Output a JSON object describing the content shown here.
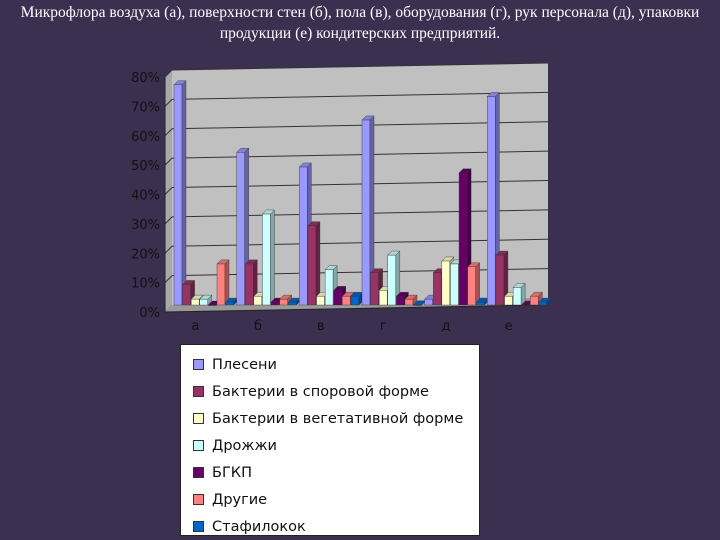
{
  "title": "Микрофлора воздуха (а), поверхности стен (б), пола (в), оборудования (г), рук персонала (д), упаковки продукции (е) кондитерских предприятий.",
  "chart_data": {
    "type": "bar",
    "title": "",
    "xlabel": "",
    "ylabel": "",
    "ylim": [
      0,
      80
    ],
    "y_unit": "%",
    "y_ticks": [
      "0%",
      "10%",
      "20%",
      "30%",
      "40%",
      "50%",
      "60%",
      "70%",
      "80%"
    ],
    "grid": true,
    "legend_position": "bottom",
    "categories": [
      "а",
      "б",
      "в",
      "г",
      "д",
      "е"
    ],
    "series": [
      {
        "name": "Плесени",
        "color": "#9999ff",
        "values": [
          75,
          52,
          47,
          63,
          2,
          71
        ]
      },
      {
        "name": "Бактерии в споровой форме",
        "color": "#993366",
        "values": [
          7,
          14,
          27,
          11,
          11,
          17
        ]
      },
      {
        "name": "Бактерии в вегетативной форме",
        "color": "#ffffcc",
        "values": [
          2,
          3,
          3,
          5,
          15,
          3
        ]
      },
      {
        "name": "Дрожжи",
        "color": "#ccffff",
        "values": [
          2,
          31,
          12,
          17,
          14,
          6
        ]
      },
      {
        "name": "БГКП",
        "color": "#660066",
        "values": [
          0,
          1,
          5,
          3,
          45,
          0
        ]
      },
      {
        "name": "Другие",
        "color": "#ff8080",
        "values": [
          14,
          2,
          3,
          2,
          13,
          3
        ]
      },
      {
        "name": "Стафилокок",
        "color": "#0066cc",
        "values": [
          1,
          1,
          3,
          0,
          1,
          1
        ]
      }
    ]
  }
}
